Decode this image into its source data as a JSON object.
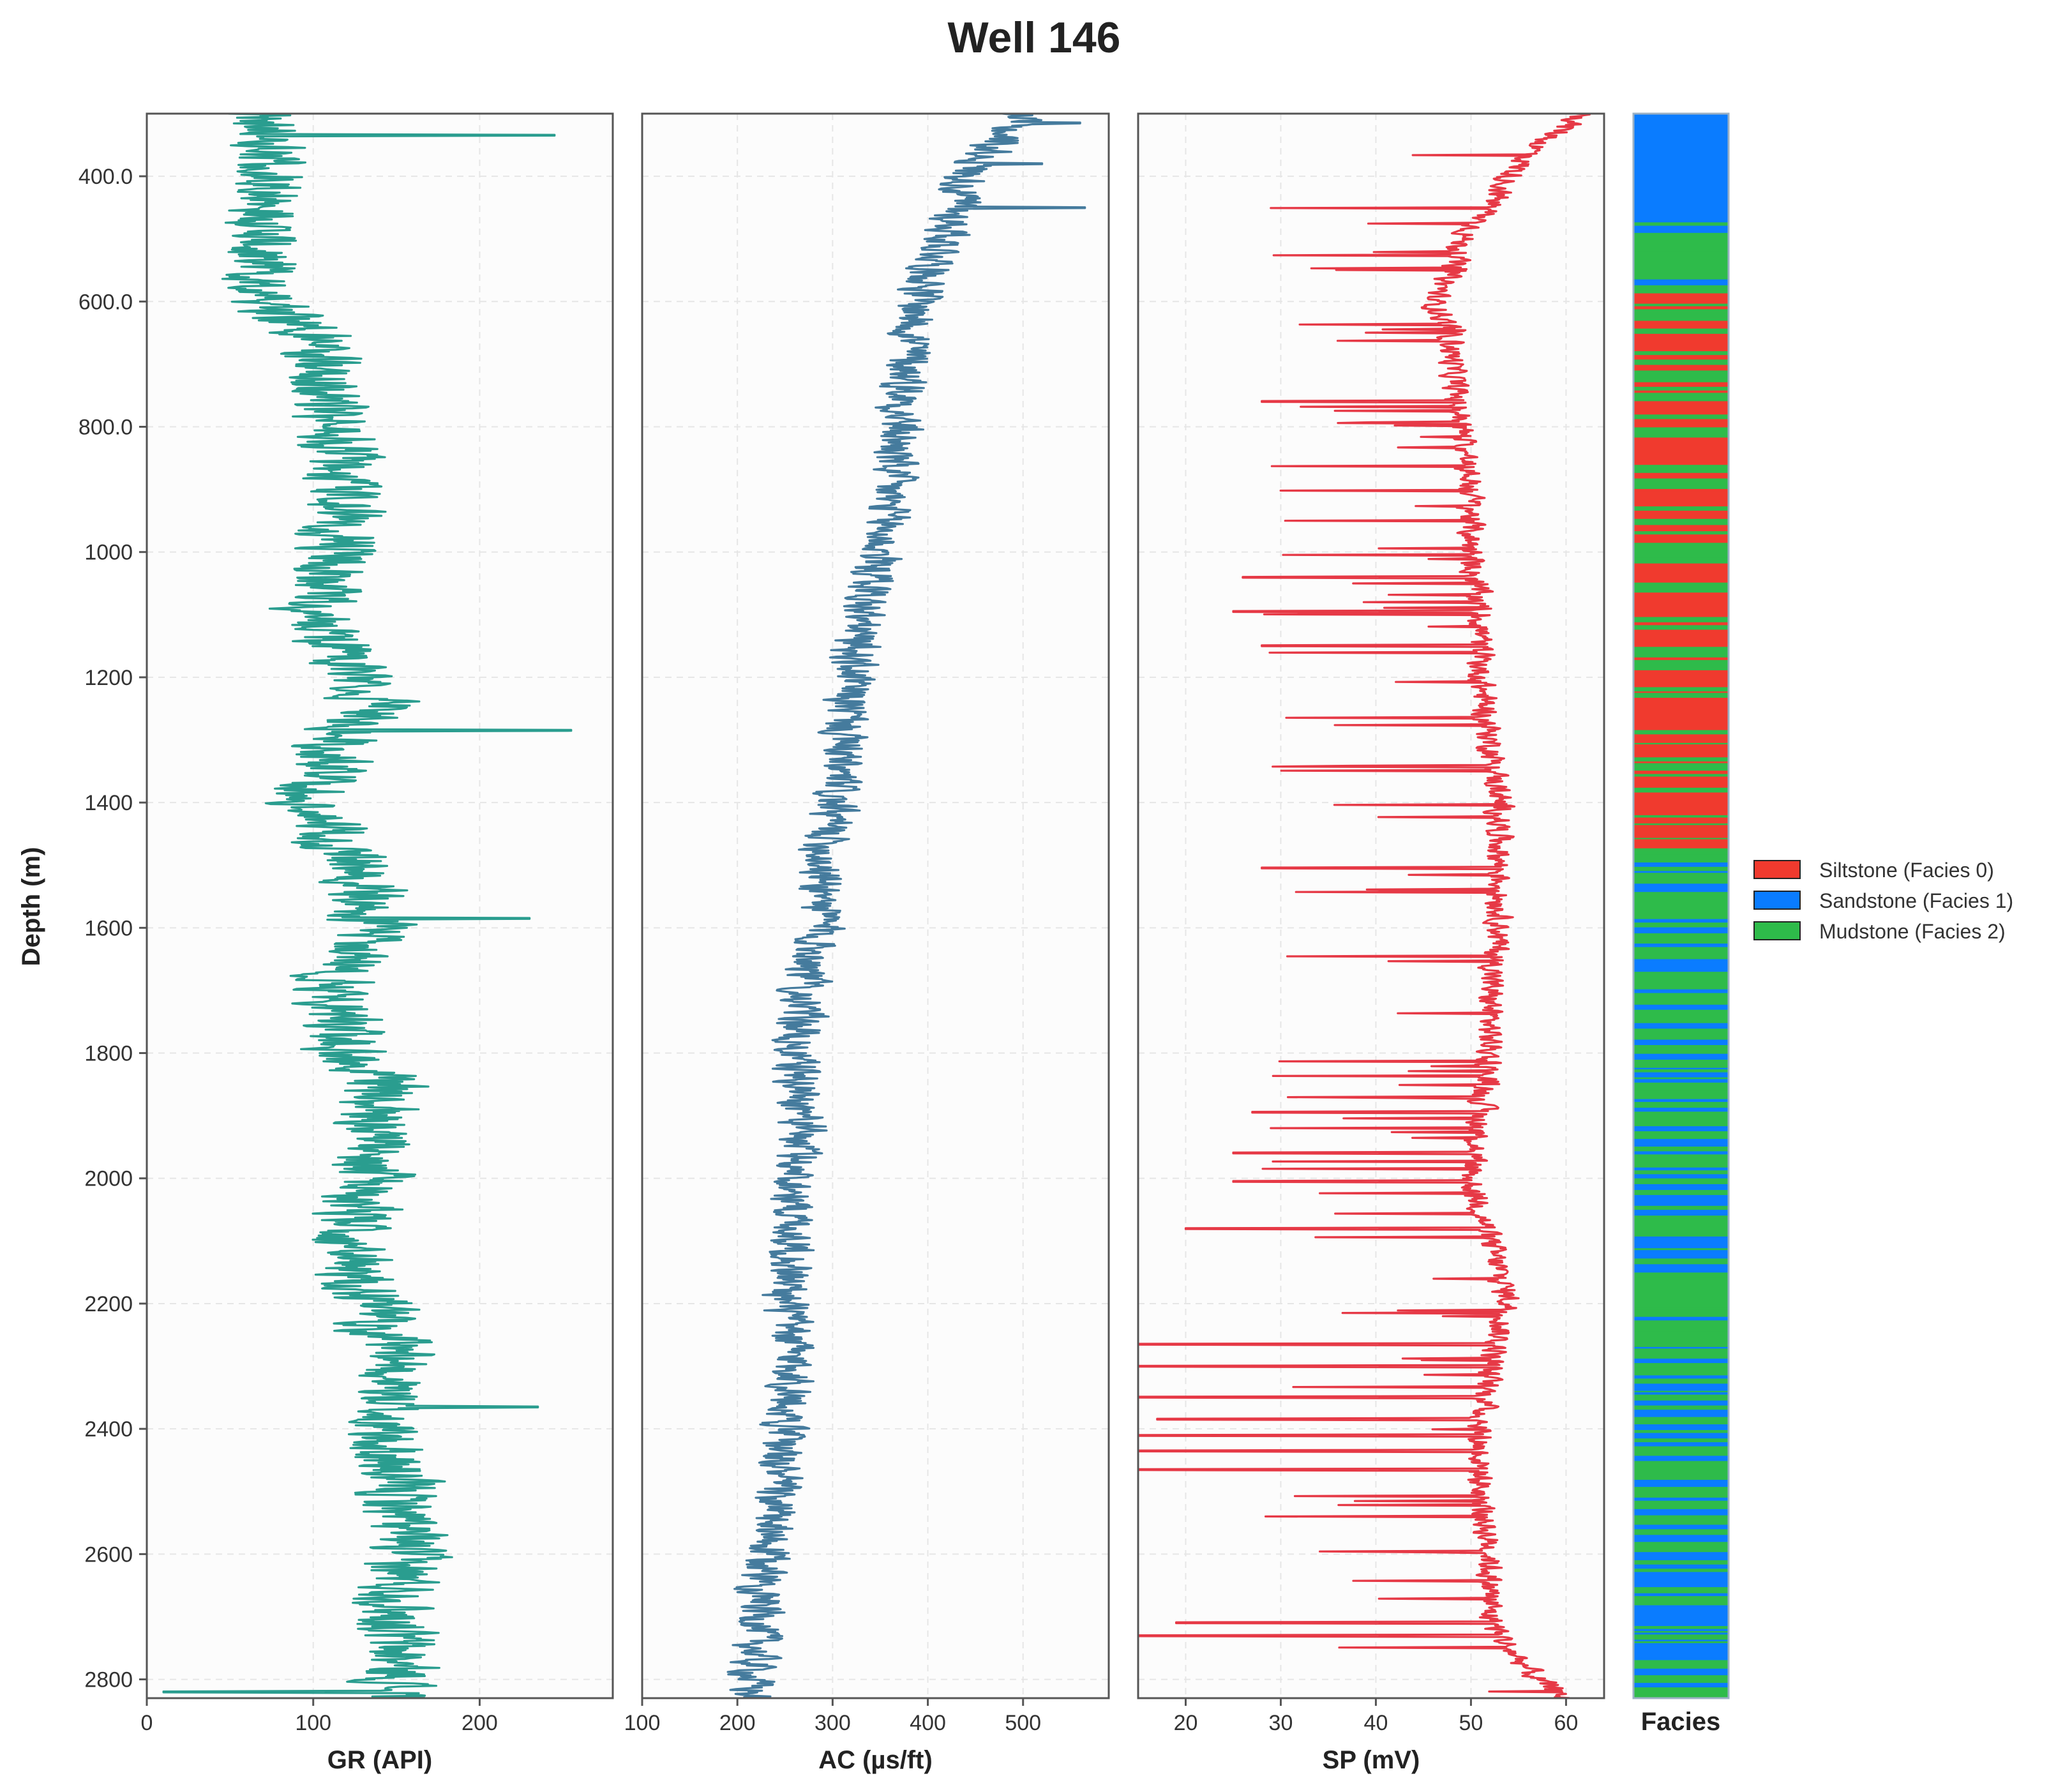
{
  "chart_data": {
    "type": "line",
    "title": "Well 146",
    "ylabel": "Depth (m)",
    "ylim": [
      2830,
      300
    ],
    "y_ticks": [
      {
        "value": 400,
        "label": "400.0"
      },
      {
        "value": 600,
        "label": "600.0"
      },
      {
        "value": 800,
        "label": "800.0"
      },
      {
        "value": 1000,
        "label": "1000"
      },
      {
        "value": 1200,
        "label": "1200"
      },
      {
        "value": 1400,
        "label": "1400"
      },
      {
        "value": 1600,
        "label": "1600"
      },
      {
        "value": 1800,
        "label": "1800"
      },
      {
        "value": 2000,
        "label": "2000"
      },
      {
        "value": 2200,
        "label": "2200"
      },
      {
        "value": 2400,
        "label": "2400"
      },
      {
        "value": 2600,
        "label": "2600"
      },
      {
        "value": 2800,
        "label": "2800"
      }
    ],
    "grid": true,
    "tracks": [
      {
        "name": "GR",
        "xlabel": "GR (API)",
        "color": "#2a9d8f",
        "xlim": [
          0,
          280
        ],
        "x_ticks": [
          0,
          100,
          200
        ],
        "profile": [
          [
            300,
            70
          ],
          [
            350,
            75
          ],
          [
            400,
            78
          ],
          [
            500,
            70
          ],
          [
            600,
            75
          ],
          [
            650,
            100
          ],
          [
            750,
            105
          ],
          [
            800,
            115
          ],
          [
            900,
            115
          ],
          [
            1000,
            115
          ],
          [
            1100,
            100
          ],
          [
            1200,
            125
          ],
          [
            1250,
            140
          ],
          [
            1300,
            115
          ],
          [
            1400,
            100
          ],
          [
            1450,
            110
          ],
          [
            1500,
            130
          ],
          [
            1600,
            135
          ],
          [
            1700,
            110
          ],
          [
            1800,
            120
          ],
          [
            1850,
            140
          ],
          [
            1900,
            140
          ],
          [
            2000,
            135
          ],
          [
            2100,
            120
          ],
          [
            2200,
            135
          ],
          [
            2300,
            150
          ],
          [
            2400,
            140
          ],
          [
            2500,
            150
          ],
          [
            2600,
            155
          ],
          [
            2700,
            150
          ],
          [
            2800,
            150
          ],
          [
            2830,
            150
          ]
        ],
        "noise": 22,
        "spikes_high": [
          [
            335,
            245
          ],
          [
            1285,
            255
          ],
          [
            1585,
            230
          ],
          [
            2365,
            235
          ]
        ],
        "spikes_low": [
          [
            2820,
            10
          ]
        ]
      },
      {
        "name": "AC",
        "xlabel": "AC (µs/ft)",
        "color": "#457b9d",
        "xlim": [
          100,
          590
        ],
        "x_ticks": [
          100,
          200,
          300,
          400,
          500
        ],
        "profile": [
          [
            300,
            500
          ],
          [
            350,
            470
          ],
          [
            400,
            440
          ],
          [
            500,
            420
          ],
          [
            600,
            390
          ],
          [
            700,
            380
          ],
          [
            800,
            370
          ],
          [
            900,
            360
          ],
          [
            1000,
            350
          ],
          [
            1100,
            330
          ],
          [
            1200,
            320
          ],
          [
            1300,
            310
          ],
          [
            1400,
            300
          ],
          [
            1500,
            290
          ],
          [
            1600,
            290
          ],
          [
            1700,
            270
          ],
          [
            1800,
            260
          ],
          [
            1900,
            270
          ],
          [
            2000,
            260
          ],
          [
            2100,
            260
          ],
          [
            2200,
            250
          ],
          [
            2300,
            260
          ],
          [
            2400,
            250
          ],
          [
            2500,
            240
          ],
          [
            2600,
            230
          ],
          [
            2700,
            225
          ],
          [
            2800,
            215
          ],
          [
            2830,
            215
          ]
        ],
        "noise": 22,
        "spikes_high": [
          [
            315,
            560
          ],
          [
            450,
            565
          ],
          [
            380,
            520
          ]
        ],
        "spikes_low": []
      },
      {
        "name": "SP",
        "xlabel": "SP (mV)",
        "color": "#e63946",
        "xlim": [
          15,
          64
        ],
        "x_ticks": [
          20,
          30,
          40,
          50,
          60
        ],
        "profile": [
          [
            300,
            62
          ],
          [
            350,
            57
          ],
          [
            400,
            54
          ],
          [
            450,
            52
          ],
          [
            500,
            49
          ],
          [
            550,
            48
          ],
          [
            600,
            46
          ],
          [
            650,
            48
          ],
          [
            700,
            48
          ],
          [
            800,
            49
          ],
          [
            900,
            50
          ],
          [
            1000,
            50
          ],
          [
            1100,
            51
          ],
          [
            1200,
            51
          ],
          [
            1300,
            52
          ],
          [
            1400,
            53
          ],
          [
            1500,
            53
          ],
          [
            1600,
            53
          ],
          [
            1700,
            52
          ],
          [
            1800,
            52
          ],
          [
            1900,
            51
          ],
          [
            2000,
            50
          ],
          [
            2100,
            52
          ],
          [
            2200,
            54
          ],
          [
            2300,
            52
          ],
          [
            2400,
            51
          ],
          [
            2500,
            51
          ],
          [
            2600,
            52
          ],
          [
            2700,
            52
          ],
          [
            2750,
            54
          ],
          [
            2800,
            57
          ],
          [
            2830,
            60
          ]
        ],
        "noise": 1.2,
        "dip_rate": 0.28,
        "spikes_low": [
          [
            760,
            28
          ],
          [
            1040,
            26
          ],
          [
            1095,
            25
          ],
          [
            1150,
            28
          ],
          [
            1505,
            28
          ],
          [
            1895,
            27
          ],
          [
            1960,
            25
          ],
          [
            2005,
            25
          ],
          [
            2080,
            20
          ],
          [
            2265,
            15
          ],
          [
            2300,
            15
          ],
          [
            2350,
            15
          ],
          [
            2385,
            17
          ],
          [
            2410,
            15
          ],
          [
            2435,
            15
          ],
          [
            2465,
            15
          ],
          [
            2710,
            19
          ],
          [
            2730,
            15
          ]
        ],
        "spikes_high": []
      }
    ],
    "facies": {
      "label": "Facies",
      "legend": [
        {
          "name": "Siltstone (Facies 0)",
          "color": "#f03a2e"
        },
        {
          "name": "Sandstone (Facies 1)",
          "color": "#0a7cff"
        },
        {
          "name": "Mudstone (Facies 2)",
          "color": "#2ebb4a"
        }
      ],
      "zones": [
        {
          "from": 300,
          "to": 420,
          "mix": [
            0,
            0.85,
            0.15
          ]
        },
        {
          "from": 420,
          "to": 470,
          "mix": [
            0,
            1,
            0
          ]
        },
        {
          "from": 470,
          "to": 575,
          "mix": [
            0,
            0.35,
            0.65
          ]
        },
        {
          "from": 575,
          "to": 1480,
          "mix": [
            0.6,
            0,
            0.4
          ]
        },
        {
          "from": 1480,
          "to": 2150,
          "mix": [
            0,
            0.45,
            0.55
          ]
        },
        {
          "from": 2150,
          "to": 2280,
          "mix": [
            0,
            0.15,
            0.85
          ]
        },
        {
          "from": 2280,
          "to": 2830,
          "mix": [
            0,
            0.5,
            0.5
          ]
        }
      ]
    }
  }
}
